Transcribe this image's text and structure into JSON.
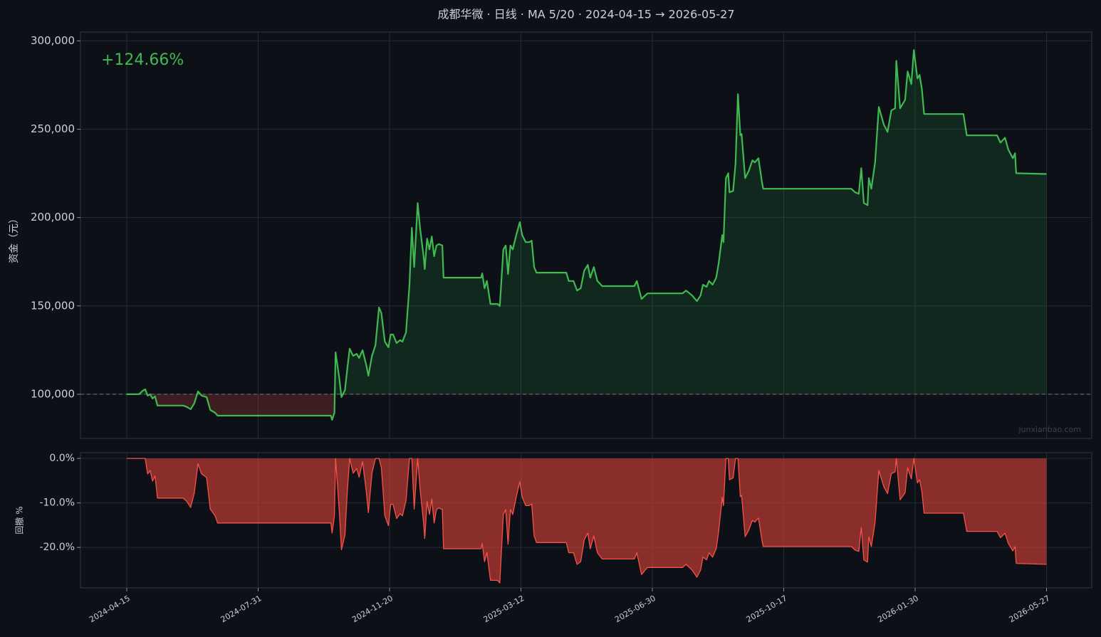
{
  "chart_data": [
    {
      "type": "area",
      "title": "成都华微 · 日线 · MA 5/20 · 2024-04-15 → 2026-05-27",
      "y_label": "资金（元）",
      "annotation": "+124.66%",
      "watermark": "junxianbao.com",
      "color": "#3fb950",
      "fill_colors": {
        "above": "rgba(46,160,67,0.16)",
        "below": "rgba(190,60,60,0.28)"
      },
      "baseline": 100000,
      "grid": true,
      "xlim": [
        "2024-03-08",
        "2026-07-06"
      ],
      "xticks": [
        "2024-04-15",
        "2024-07-31",
        "2024-11-20",
        "2025-03-12",
        "2025-06-30",
        "2025-10-17",
        "2026-01-30",
        "2026-05-27"
      ],
      "ylim": [
        75000,
        305000
      ],
      "yticks": [
        {
          "value": 100000,
          "label": "100,000"
        },
        {
          "value": 150000,
          "label": "150,000"
        },
        {
          "value": 200000,
          "label": "200,000"
        },
        {
          "value": 250000,
          "label": "250,000"
        },
        {
          "value": 300000,
          "label": "300,000"
        }
      ],
      "x": [
        "2024-04-15",
        "2024-04-25",
        "2024-04-28",
        "2024-04-30",
        "2024-05-02",
        "2024-05-04",
        "2024-05-06",
        "2024-05-08",
        "2024-05-10",
        "2024-05-31",
        "2024-06-03",
        "2024-06-06",
        "2024-06-09",
        "2024-06-12",
        "2024-06-15",
        "2024-06-19",
        "2024-06-22",
        "2024-06-26",
        "2024-06-28",
        "2024-10-01",
        "2024-10-02",
        "2024-10-04",
        "2024-10-05",
        "2024-10-08",
        "2024-10-10",
        "2024-10-13",
        "2024-10-15",
        "2024-10-17",
        "2024-10-20",
        "2024-10-23",
        "2024-10-25",
        "2024-10-28",
        "2024-10-31",
        "2024-11-02",
        "2024-11-05",
        "2024-11-08",
        "2024-11-11",
        "2024-11-13",
        "2024-11-16",
        "2024-11-19",
        "2024-11-21",
        "2024-11-23",
        "2024-11-26",
        "2024-11-29",
        "2024-12-01",
        "2024-12-04",
        "2024-12-07",
        "2024-12-09",
        "2024-12-11",
        "2024-12-14",
        "2024-12-16",
        "2024-12-19",
        "2024-12-20",
        "2024-12-22",
        "2024-12-24",
        "2024-12-26",
        "2024-12-28",
        "2024-12-30",
        "2025-01-01",
        "2025-01-04",
        "2025-01-05",
        "2025-02-06",
        "2025-02-07",
        "2025-02-09",
        "2025-02-11",
        "2025-02-14",
        "2025-02-20",
        "2025-02-22",
        "2025-02-25",
        "2025-02-27",
        "2025-03-01",
        "2025-03-03",
        "2025-03-05",
        "2025-03-08",
        "2025-03-11",
        "2025-03-13",
        "2025-03-16",
        "2025-03-19",
        "2025-03-21",
        "2025-03-23",
        "2025-03-25",
        "2025-04-19",
        "2025-04-21",
        "2025-04-25",
        "2025-04-28",
        "2025-05-01",
        "2025-05-04",
        "2025-05-07",
        "2025-05-09",
        "2025-05-12",
        "2025-05-15",
        "2025-05-19",
        "2025-06-15",
        "2025-06-17",
        "2025-06-21",
        "2025-06-24",
        "2025-06-26",
        "2025-07-25",
        "2025-07-28",
        "2025-08-02",
        "2025-08-06",
        "2025-08-09",
        "2025-08-11",
        "2025-08-14",
        "2025-08-16",
        "2025-08-19",
        "2025-08-22",
        "2025-08-24",
        "2025-08-27",
        "2025-08-28",
        "2025-08-30",
        "2025-09-01",
        "2025-09-02",
        "2025-09-05",
        "2025-09-07",
        "2025-09-09",
        "2025-09-11",
        "2025-09-12",
        "2025-09-15",
        "2025-09-18",
        "2025-09-21",
        "2025-09-23",
        "2025-09-26",
        "2025-09-29",
        "2025-09-30",
        "2025-12-10",
        "2025-12-13",
        "2025-12-16",
        "2025-12-18",
        "2025-12-20",
        "2025-12-23",
        "2025-12-24",
        "2025-12-26",
        "2025-12-29",
        "2026-01-01",
        "2026-01-05",
        "2026-01-08",
        "2026-01-11",
        "2026-01-14",
        "2026-01-15",
        "2026-01-18",
        "2026-01-22",
        "2026-01-24",
        "2026-01-27",
        "2026-01-29",
        "2026-02-01",
        "2026-02-03",
        "2026-02-05",
        "2026-02-07",
        "2026-03-14",
        "2026-03-17",
        "2026-04-13",
        "2026-04-16",
        "2026-04-20",
        "2026-04-23",
        "2026-04-27",
        "2026-04-29",
        "2026-04-30",
        "2026-05-27"
      ],
      "values": [
        100000,
        100000,
        102000,
        102800,
        99200,
        100000,
        97600,
        98800,
        93600,
        93600,
        92800,
        91500,
        94800,
        101600,
        99200,
        98400,
        91100,
        89500,
        87900,
        87900,
        85500,
        89500,
        123700,
        109700,
        98400,
        102400,
        114500,
        125800,
        121700,
        122900,
        120500,
        124900,
        116900,
        110500,
        121700,
        127800,
        149100,
        145900,
        129800,
        126600,
        133800,
        133800,
        129000,
        130600,
        129800,
        135000,
        162000,
        194200,
        172000,
        208200,
        194200,
        178100,
        170800,
        188100,
        182000,
        189300,
        178100,
        184200,
        185000,
        184200,
        166000,
        166000,
        168400,
        160000,
        164100,
        151100,
        151100,
        149900,
        182000,
        184200,
        168000,
        184200,
        182000,
        190100,
        197400,
        190100,
        186100,
        186100,
        186900,
        172000,
        168800,
        168800,
        164100,
        164100,
        158700,
        160000,
        170000,
        173200,
        166000,
        172000,
        164100,
        161200,
        161200,
        164100,
        153900,
        155900,
        157100,
        157100,
        158700,
        155900,
        152700,
        155900,
        162000,
        160800,
        164100,
        162000,
        166000,
        174000,
        190100,
        186100,
        222300,
        225100,
        214300,
        215100,
        230400,
        269800,
        246500,
        247300,
        222300,
        226400,
        232400,
        231200,
        233600,
        219900,
        216300,
        216300,
        214300,
        213500,
        228000,
        208200,
        207000,
        222300,
        216300,
        231200,
        262600,
        252500,
        248500,
        260600,
        261800,
        288700,
        261800,
        266600,
        282700,
        275500,
        294800,
        278700,
        280700,
        272600,
        258600,
        258600,
        246500,
        246500,
        242400,
        245200,
        238400,
        233600,
        236400,
        225100,
        224660
      ]
    },
    {
      "type": "area",
      "y_label": "回撤 %",
      "color": "#f85149",
      "fill": "rgba(214,64,56,0.62)",
      "grid": true,
      "xlim": [
        "2024-03-08",
        "2026-07-06"
      ],
      "xticks": [
        "2024-04-15",
        "2024-07-31",
        "2024-11-20",
        "2025-03-12",
        "2025-06-30",
        "2025-10-17",
        "2026-01-30",
        "2026-05-27"
      ],
      "ylim": [
        -29.1,
        1.3
      ],
      "yticks": [
        {
          "value": 0,
          "label": "0.0%"
        },
        {
          "value": -10,
          "label": "-10.0%"
        },
        {
          "value": -20,
          "label": "-20.0%"
        }
      ],
      "x": [
        "2024-04-15",
        "2024-04-25",
        "2024-04-28",
        "2024-04-30",
        "2024-05-02",
        "2024-05-04",
        "2024-05-06",
        "2024-05-08",
        "2024-05-10",
        "2024-05-31",
        "2024-06-03",
        "2024-06-06",
        "2024-06-09",
        "2024-06-12",
        "2024-06-15",
        "2024-06-19",
        "2024-06-22",
        "2024-06-26",
        "2024-06-28",
        "2024-10-01",
        "2024-10-02",
        "2024-10-04",
        "2024-10-05",
        "2024-10-08",
        "2024-10-10",
        "2024-10-13",
        "2024-10-15",
        "2024-10-17",
        "2024-10-20",
        "2024-10-23",
        "2024-10-25",
        "2024-10-28",
        "2024-10-31",
        "2024-11-02",
        "2024-11-05",
        "2024-11-08",
        "2024-11-11",
        "2024-11-13",
        "2024-11-16",
        "2024-11-19",
        "2024-11-21",
        "2024-11-23",
        "2024-11-26",
        "2024-11-29",
        "2024-12-01",
        "2024-12-04",
        "2024-12-07",
        "2024-12-09",
        "2024-12-11",
        "2024-12-14",
        "2024-12-16",
        "2024-12-19",
        "2024-12-20",
        "2024-12-22",
        "2024-12-24",
        "2024-12-26",
        "2024-12-28",
        "2024-12-30",
        "2025-01-01",
        "2025-01-04",
        "2025-01-05",
        "2025-02-06",
        "2025-02-07",
        "2025-02-09",
        "2025-02-11",
        "2025-02-14",
        "2025-02-20",
        "2025-02-22",
        "2025-02-25",
        "2025-02-27",
        "2025-03-01",
        "2025-03-03",
        "2025-03-05",
        "2025-03-08",
        "2025-03-11",
        "2025-03-13",
        "2025-03-16",
        "2025-03-19",
        "2025-03-21",
        "2025-03-23",
        "2025-03-25",
        "2025-04-19",
        "2025-04-21",
        "2025-04-25",
        "2025-04-28",
        "2025-05-01",
        "2025-05-04",
        "2025-05-07",
        "2025-05-09",
        "2025-05-12",
        "2025-05-15",
        "2025-05-19",
        "2025-06-15",
        "2025-06-17",
        "2025-06-21",
        "2025-06-24",
        "2025-06-26",
        "2025-07-25",
        "2025-07-28",
        "2025-08-02",
        "2025-08-06",
        "2025-08-09",
        "2025-08-11",
        "2025-08-14",
        "2025-08-16",
        "2025-08-19",
        "2025-08-22",
        "2025-08-24",
        "2025-08-27",
        "2025-08-28",
        "2025-08-30",
        "2025-09-01",
        "2025-09-02",
        "2025-09-05",
        "2025-09-07",
        "2025-09-09",
        "2025-09-11",
        "2025-09-12",
        "2025-09-15",
        "2025-09-18",
        "2025-09-21",
        "2025-09-23",
        "2025-09-26",
        "2025-09-29",
        "2025-09-30",
        "2025-12-10",
        "2025-12-13",
        "2025-12-16",
        "2025-12-18",
        "2025-12-20",
        "2025-12-23",
        "2025-12-24",
        "2025-12-26",
        "2025-12-29",
        "2026-01-01",
        "2026-01-05",
        "2026-01-08",
        "2026-01-11",
        "2026-01-14",
        "2026-01-15",
        "2026-01-18",
        "2026-01-22",
        "2026-01-24",
        "2026-01-27",
        "2026-01-29",
        "2026-02-01",
        "2026-02-03",
        "2026-02-05",
        "2026-02-07",
        "2026-03-14",
        "2026-03-17",
        "2026-04-13",
        "2026-04-16",
        "2026-04-20",
        "2026-04-23",
        "2026-04-27",
        "2026-04-29",
        "2026-04-30",
        "2026-05-27"
      ],
      "values": [
        0,
        0,
        0,
        0,
        -3.5,
        -2.7,
        -5.1,
        -3.9,
        -8.9,
        -8.9,
        -9.7,
        -11.0,
        -7.8,
        -1.2,
        -3.5,
        -4.3,
        -11.4,
        -12.9,
        -14.5,
        -14.5,
        -16.8,
        -12.9,
        0,
        -11.3,
        -20.5,
        -17.2,
        -7.4,
        0,
        -3.3,
        -2.3,
        -4.2,
        -0.7,
        -7.1,
        -12.2,
        -3.3,
        0,
        0,
        -2.1,
        -12.9,
        -15.1,
        -10.3,
        -10.3,
        -13.5,
        -12.4,
        -12.9,
        -9.5,
        0,
        0,
        -11.4,
        0,
        -6.7,
        -14.5,
        -18.0,
        -9.7,
        -12.6,
        -9.1,
        -14.5,
        -11.5,
        -11.1,
        -11.5,
        -20.3,
        -20.3,
        -19.1,
        -23.2,
        -21.2,
        -27.4,
        -27.4,
        -28.0,
        -12.6,
        -11.5,
        -19.3,
        -11.5,
        -12.6,
        -8.7,
        -5.2,
        -8.7,
        -10.6,
        -10.6,
        -10.2,
        -17.4,
        -18.9,
        -18.9,
        -21.2,
        -21.2,
        -23.8,
        -23.2,
        -18.3,
        -16.8,
        -20.3,
        -17.4,
        -21.2,
        -22.6,
        -22.6,
        -21.2,
        -26.1,
        -25.1,
        -24.5,
        -24.5,
        -23.8,
        -25.1,
        -26.7,
        -25.1,
        -22.2,
        -22.8,
        -21.2,
        -22.2,
        -20.3,
        -16.4,
        -8.7,
        -10.6,
        0,
        0,
        -4.8,
        -4.4,
        0,
        0,
        -8.6,
        -8.3,
        -17.6,
        -16.1,
        -13.9,
        -14.3,
        -13.4,
        -18.5,
        -19.8,
        -19.8,
        -20.6,
        -20.9,
        -15.5,
        -22.8,
        -23.3,
        -17.6,
        -19.8,
        -14.3,
        -2.7,
        -6.4,
        -7.9,
        -3.4,
        -3.0,
        0,
        -9.3,
        -7.7,
        -2.1,
        -4.6,
        0,
        -5.5,
        -4.8,
        -7.5,
        -12.3,
        -12.3,
        -16.4,
        -16.4,
        -17.8,
        -16.8,
        -19.1,
        -20.8,
        -19.8,
        -23.6,
        -23.8
      ]
    }
  ]
}
